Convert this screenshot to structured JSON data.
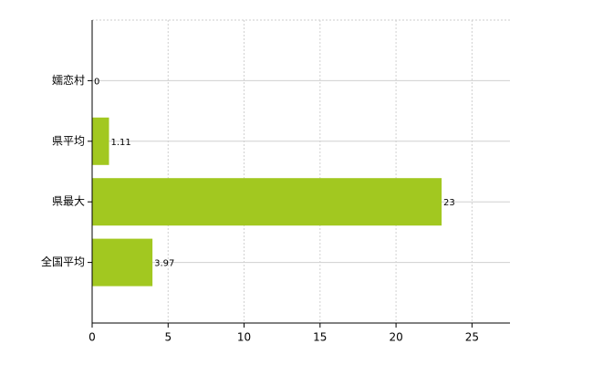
{
  "chart_data": {
    "type": "bar",
    "orientation": "horizontal",
    "categories": [
      "嬬恋村",
      "県平均",
      "県最大",
      "全国平均"
    ],
    "values": [
      0,
      1.11,
      23,
      3.97
    ],
    "color": "#a2c820",
    "xlim": [
      0,
      27.5
    ],
    "xticks": [
      0,
      5,
      10,
      15,
      20,
      25
    ],
    "grid": true
  }
}
